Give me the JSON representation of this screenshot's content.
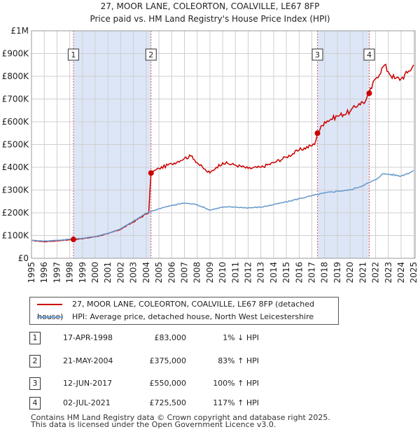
{
  "title_line1": "27, MOOR LANE, COLEORTON, COALVILLE, LE67 8FP",
  "title_line2": "Price paid vs. HM Land Registry's House Price Index (HPI)",
  "chart_data": {
    "type": "line",
    "xlim": [
      1995,
      2025.1
    ],
    "ylim": [
      0,
      1000000
    ],
    "y_ticks": [
      0,
      100000,
      200000,
      300000,
      400000,
      500000,
      600000,
      700000,
      800000,
      900000,
      1000000
    ],
    "y_tick_labels": [
      "£0",
      "£100K",
      "£200K",
      "£300K",
      "£400K",
      "£500K",
      "£600K",
      "£700K",
      "£800K",
      "£900K",
      "£1M"
    ],
    "x_ticks": [
      1995,
      1996,
      1997,
      1998,
      1999,
      2000,
      2001,
      2002,
      2003,
      2004,
      2005,
      2006,
      2007,
      2008,
      2009,
      2010,
      2011,
      2012,
      2013,
      2014,
      2015,
      2016,
      2017,
      2018,
      2019,
      2020,
      2021,
      2022,
      2023,
      2024,
      2025
    ],
    "grid": true,
    "series": [
      {
        "name": "27, MOOR LANE, COLEORTON, COALVILLE, LE67 8FP (detached house)",
        "color": "#cc0000",
        "points": [
          [
            1995,
            78000
          ],
          [
            1996,
            73000
          ],
          [
            1997,
            77000
          ],
          [
            1998.29,
            83000
          ],
          [
            1999,
            86000
          ],
          [
            2000,
            95000
          ],
          [
            2001,
            108000
          ],
          [
            2002,
            128000
          ],
          [
            2003,
            160000
          ],
          [
            2004,
            195000
          ],
          [
            2004.2,
            200000
          ],
          [
            2004.38,
            375000
          ],
          [
            2005,
            395000
          ],
          [
            2006,
            415000
          ],
          [
            2007,
            440000
          ],
          [
            2007.6,
            450000
          ],
          [
            2008,
            420000
          ],
          [
            2008.7,
            385000
          ],
          [
            2009,
            375000
          ],
          [
            2009.5,
            400000
          ],
          [
            2010,
            420000
          ],
          [
            2011,
            410000
          ],
          [
            2012,
            395000
          ],
          [
            2013,
            400000
          ],
          [
            2014,
            420000
          ],
          [
            2015,
            445000
          ],
          [
            2016,
            475000
          ],
          [
            2017.2,
            500000
          ],
          [
            2017.44,
            550000
          ],
          [
            2018,
            600000
          ],
          [
            2019,
            625000
          ],
          [
            2020,
            645000
          ],
          [
            2020.7,
            680000
          ],
          [
            2021.2,
            690000
          ],
          [
            2021.5,
            725500
          ],
          [
            2022,
            790000
          ],
          [
            2022.7,
            850000
          ],
          [
            2023,
            820000
          ],
          [
            2023.5,
            790000
          ],
          [
            2024,
            790000
          ],
          [
            2024.5,
            815000
          ],
          [
            2025,
            850000
          ]
        ]
      },
      {
        "name": "HPI: Average price, detached house, North West Leicestershire",
        "color": "#6699cc",
        "points": [
          [
            1995,
            79000
          ],
          [
            1996,
            76000
          ],
          [
            1997,
            79000
          ],
          [
            1998,
            84000
          ],
          [
            1999,
            88000
          ],
          [
            2000,
            96000
          ],
          [
            2001,
            110000
          ],
          [
            2002,
            130000
          ],
          [
            2003,
            163000
          ],
          [
            2004,
            198000
          ],
          [
            2005,
            218000
          ],
          [
            2006,
            232000
          ],
          [
            2007,
            243000
          ],
          [
            2008,
            236000
          ],
          [
            2009,
            212000
          ],
          [
            2010,
            225000
          ],
          [
            2011,
            225000
          ],
          [
            2012,
            222000
          ],
          [
            2013,
            225000
          ],
          [
            2014,
            236000
          ],
          [
            2015,
            248000
          ],
          [
            2016,
            262000
          ],
          [
            2017,
            275000
          ],
          [
            2018,
            287000
          ],
          [
            2019,
            295000
          ],
          [
            2020,
            300000
          ],
          [
            2021,
            320000
          ],
          [
            2022,
            345000
          ],
          [
            2022.5,
            370000
          ],
          [
            2023,
            370000
          ],
          [
            2024,
            362000
          ],
          [
            2025,
            385000
          ]
        ]
      }
    ],
    "transactions": [
      {
        "num": "1",
        "x": 1998.29,
        "y": 83000,
        "date": "17-APR-1998",
        "price": "£83,000",
        "hpi": "1% ↓ HPI"
      },
      {
        "num": "2",
        "x": 2004.38,
        "y": 375000,
        "date": "21-MAY-2004",
        "price": "£375,000",
        "hpi": "83% ↑ HPI"
      },
      {
        "num": "3",
        "x": 2017.44,
        "y": 550000,
        "date": "12-JUN-2017",
        "price": "£550,000",
        "hpi": "100% ↑ HPI"
      },
      {
        "num": "4",
        "x": 2021.5,
        "y": 725500,
        "date": "02-JUL-2021",
        "price": "£725,500",
        "hpi": "117% ↑ HPI"
      }
    ],
    "colors": {
      "shade": "#dde6f7",
      "grid": "#cfcfcf",
      "vline": "#e05555"
    }
  },
  "legend": {
    "property_label": "27, MOOR LANE, COLEORTON, COALVILLE, LE67 8FP (detached house)",
    "hpi_label": "HPI: Average price, detached house, North West Leicestershire"
  },
  "footer": {
    "line1": "Contains HM Land Registry data © Crown copyright and database right 2025.",
    "line2": "This data is licensed under the Open Government Licence v3.0."
  }
}
